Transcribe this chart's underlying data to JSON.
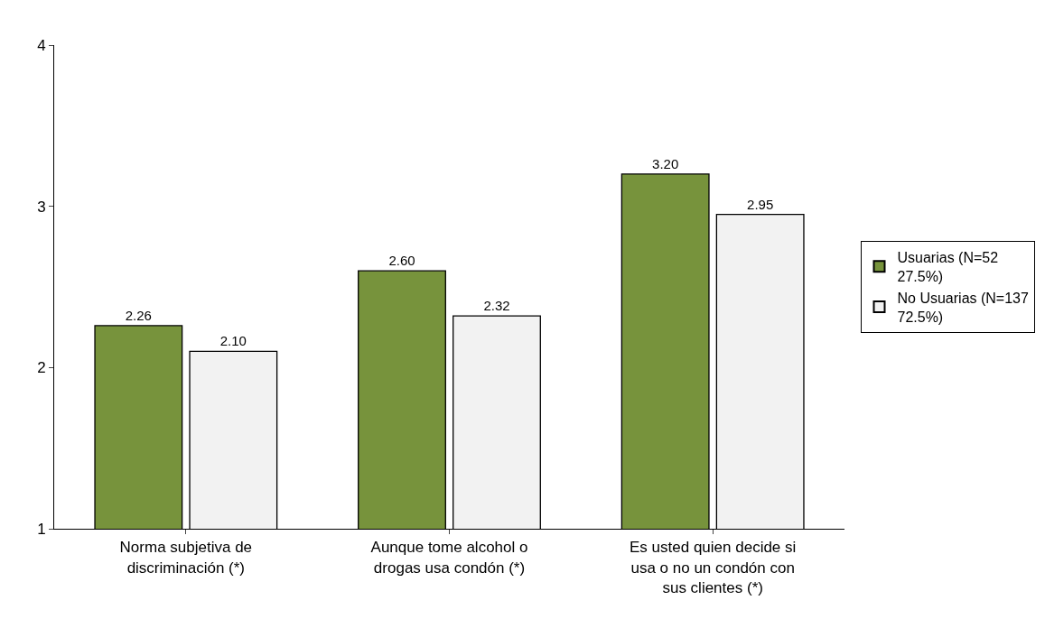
{
  "chart_data": {
    "type": "bar",
    "categories": [
      "Norma subjetiva de discriminación (*)",
      "Aunque tome alcohol o drogas usa condón (*)",
      "Es usted quien decide si usa o no un condón con sus clientes (*)"
    ],
    "series": [
      {
        "name": "Usuarias (N=52 27.5%)",
        "color": "#77933c",
        "values": [
          2.26,
          2.6,
          3.2
        ],
        "value_labels": [
          "2.26",
          "2.60",
          "3.20"
        ]
      },
      {
        "name": "No Usuarias (N=137 72.5%)",
        "color": "#f2f2f2",
        "values": [
          2.1,
          2.32,
          2.95
        ],
        "value_labels": [
          "2.10",
          "2.32",
          "2.95"
        ]
      }
    ],
    "ylim": [
      1,
      4
    ],
    "yticks": [
      1,
      2,
      3,
      4
    ],
    "grid": false,
    "legend": "right"
  }
}
